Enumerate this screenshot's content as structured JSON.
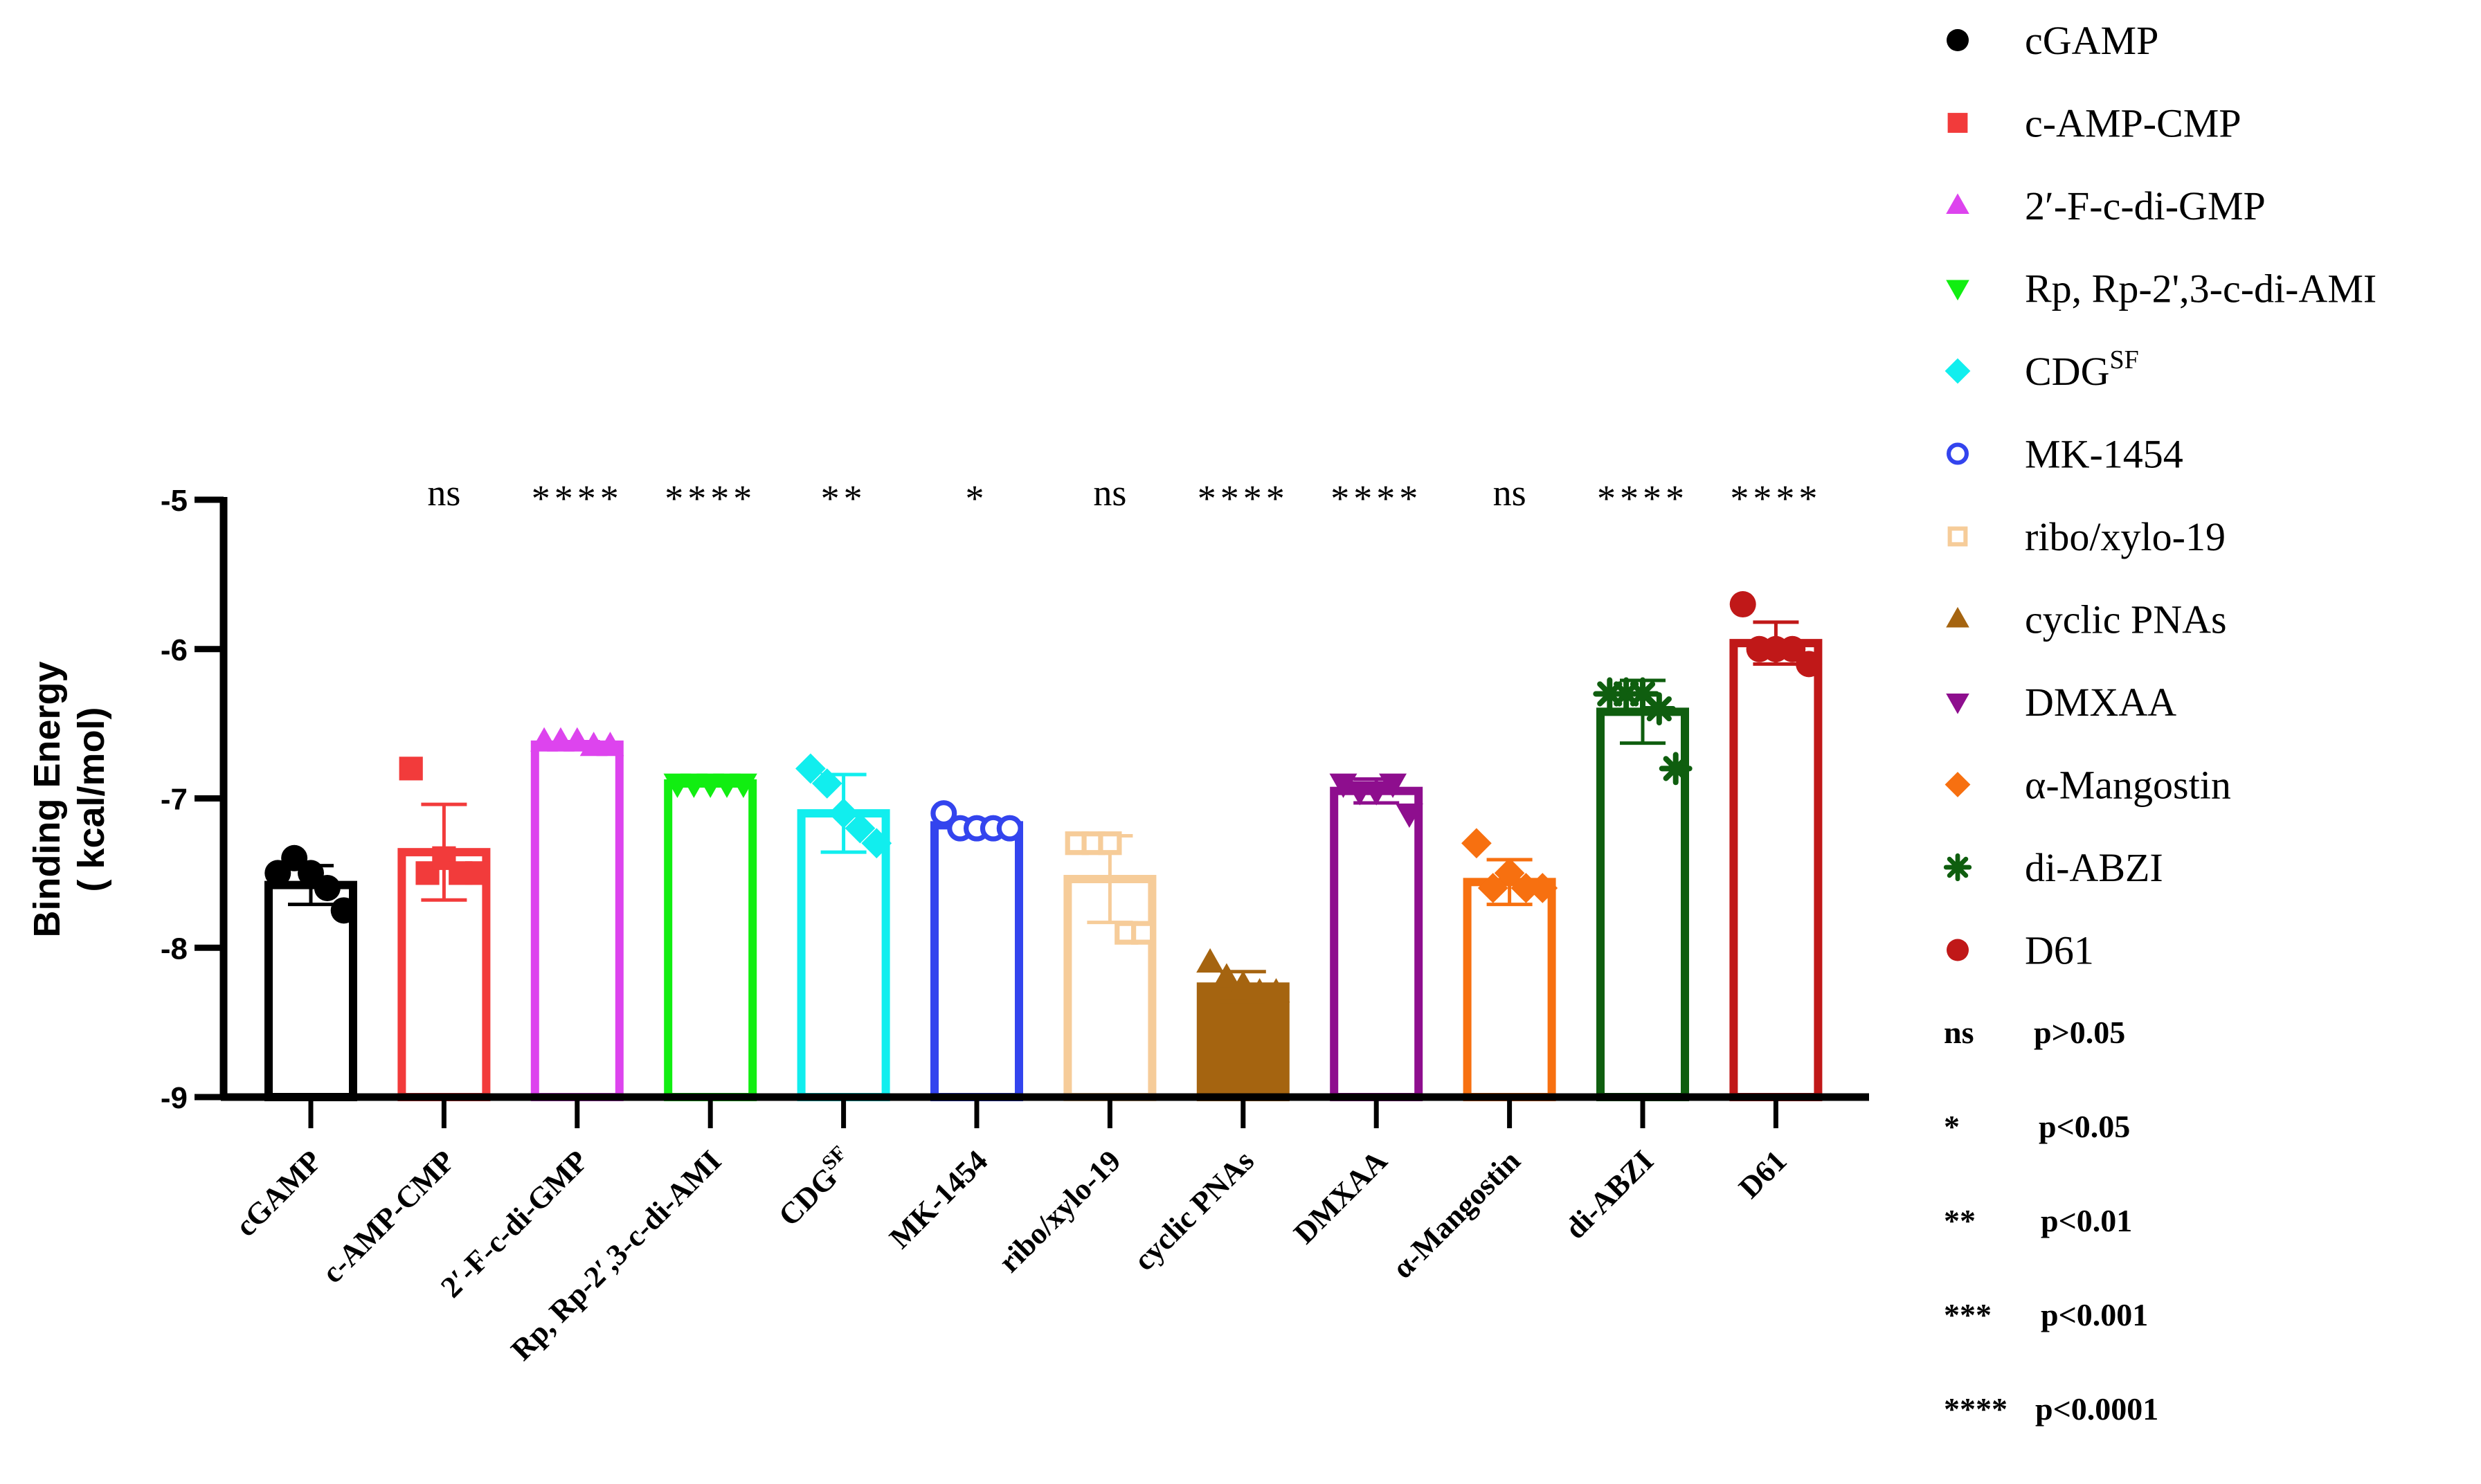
{
  "chart_data": {
    "type": "bar",
    "title": "",
    "xlabel": "",
    "ylabel": "Binding Energy",
    "ylabel_unit": "( kcal/mol)",
    "ylim": [
      -9,
      -5
    ],
    "yticks": [
      -5,
      -6,
      -7,
      -8,
      -9
    ],
    "ytick_labels": [
      "-5",
      "-6",
      "-7",
      "-8",
      "-9"
    ],
    "grid": false,
    "legend_position": "right",
    "categories": [
      {
        "label": "cGAMP",
        "sup": ""
      },
      {
        "label": "c-AMP-CMP",
        "sup": ""
      },
      {
        "label": "2′-F-c-di-GMP",
        "sup": ""
      },
      {
        "label": "Rp, Rp-2′,3-c-di-AMI",
        "sup": ""
      },
      {
        "label": "CDG",
        "sup": "SF"
      },
      {
        "label": "MK-1454",
        "sup": ""
      },
      {
        "label": "ribo/xylo-19",
        "sup": ""
      },
      {
        "label": "cyclic PNAs",
        "sup": ""
      },
      {
        "label": "DMXAA",
        "sup": ""
      },
      {
        "label": "α-Mangostin",
        "sup": ""
      },
      {
        "label": "di-ABZI",
        "sup": ""
      },
      {
        "label": "D61",
        "sup": ""
      }
    ],
    "series": [
      {
        "name": "cGAMP",
        "color": "#000000",
        "marker": "circle",
        "fill": true,
        "mean": -7.58,
        "sd": 0.13,
        "points": [
          -7.5,
          -7.4,
          -7.5,
          -7.6,
          -7.75
        ]
      },
      {
        "name": "c-AMP-CMP",
        "color": "#f23b3b",
        "marker": "square",
        "fill": true,
        "mean": -7.36,
        "sd": 0.32,
        "points": [
          -6.8,
          -7.5,
          -7.4,
          -7.5,
          -7.5
        ]
      },
      {
        "name": "2′-F-c-di-GMP",
        "color": "#dd44ee",
        "marker": "triangle-up",
        "fill": true,
        "mean": -6.64,
        "sd": 0.02,
        "points": [
          -6.62,
          -6.62,
          -6.62,
          -6.65,
          -6.65
        ]
      },
      {
        "name": "Rp, Rp-2',3-c-di-AMI",
        "color": "#11ee11",
        "marker": "triangle-down",
        "fill": true,
        "mean": -6.9,
        "sd": 0.0,
        "points": [
          -6.9,
          -6.9,
          -6.9,
          -6.9,
          -6.9
        ]
      },
      {
        "name": "CDG",
        "name_sup": "SF",
        "color": "#11eeee",
        "marker": "diamond",
        "fill": true,
        "mean": -7.1,
        "sd": 0.26,
        "points": [
          -6.8,
          -6.9,
          -7.1,
          -7.2,
          -7.3
        ]
      },
      {
        "name": "MK-1454",
        "color": "#3344ee",
        "marker": "circle",
        "fill": false,
        "mean": -7.18,
        "sd": 0.04,
        "points": [
          -7.1,
          -7.2,
          -7.2,
          -7.2,
          -7.2
        ]
      },
      {
        "name": "ribo/xylo-19",
        "color": "#f6cc99",
        "marker": "square",
        "fill": false,
        "mean": -7.54,
        "sd": 0.29,
        "points": [
          -7.3,
          -7.3,
          -7.3,
          -7.9,
          -7.9
        ]
      },
      {
        "name": "cyclic PNAs",
        "color": "#a56410",
        "marker": "triangle-up",
        "fill": true,
        "mean": -8.26,
        "sd": 0.1,
        "points": [
          -8.1,
          -8.2,
          -8.25,
          -8.3,
          -8.3
        ]
      },
      {
        "name": "DMXAA",
        "color": "#8e0e8e",
        "marker": "triangle-down",
        "fill": true,
        "mean": -6.95,
        "sd": 0.08,
        "points": [
          -6.9,
          -6.95,
          -6.95,
          -6.9,
          -7.1
        ]
      },
      {
        "name": "α-Mangostin",
        "color": "#f77010",
        "marker": "diamond",
        "fill": true,
        "mean": -7.56,
        "sd": 0.15,
        "points": [
          -7.3,
          -7.6,
          -7.5,
          -7.6,
          -7.6
        ]
      },
      {
        "name": "di-ABZI",
        "color": "#0f5e0f",
        "marker": "asterisk",
        "fill": true,
        "mean": -6.42,
        "sd": 0.21,
        "points": [
          -6.3,
          -6.3,
          -6.3,
          -6.4,
          -6.8
        ]
      },
      {
        "name": "D61",
        "color": "#c01818",
        "marker": "circle",
        "fill": true,
        "mean": -5.96,
        "sd": 0.14,
        "points": [
          -5.7,
          -6.0,
          -6.0,
          -6.0,
          -6.1
        ]
      }
    ],
    "significance": [
      "",
      "ns",
      "****",
      "****",
      "**",
      "*",
      "ns",
      "****",
      "****",
      "ns",
      "****",
      "****"
    ],
    "significance_key": [
      {
        "symbol": "ns",
        "meaning": "p>0.05"
      },
      {
        "symbol": "*",
        "meaning": "p<0.05"
      },
      {
        "symbol": "**",
        "meaning": "p<0.01"
      },
      {
        "symbol": "***",
        "meaning": "p<0.001"
      },
      {
        "symbol": "****",
        "meaning": "p<0.0001"
      }
    ]
  }
}
